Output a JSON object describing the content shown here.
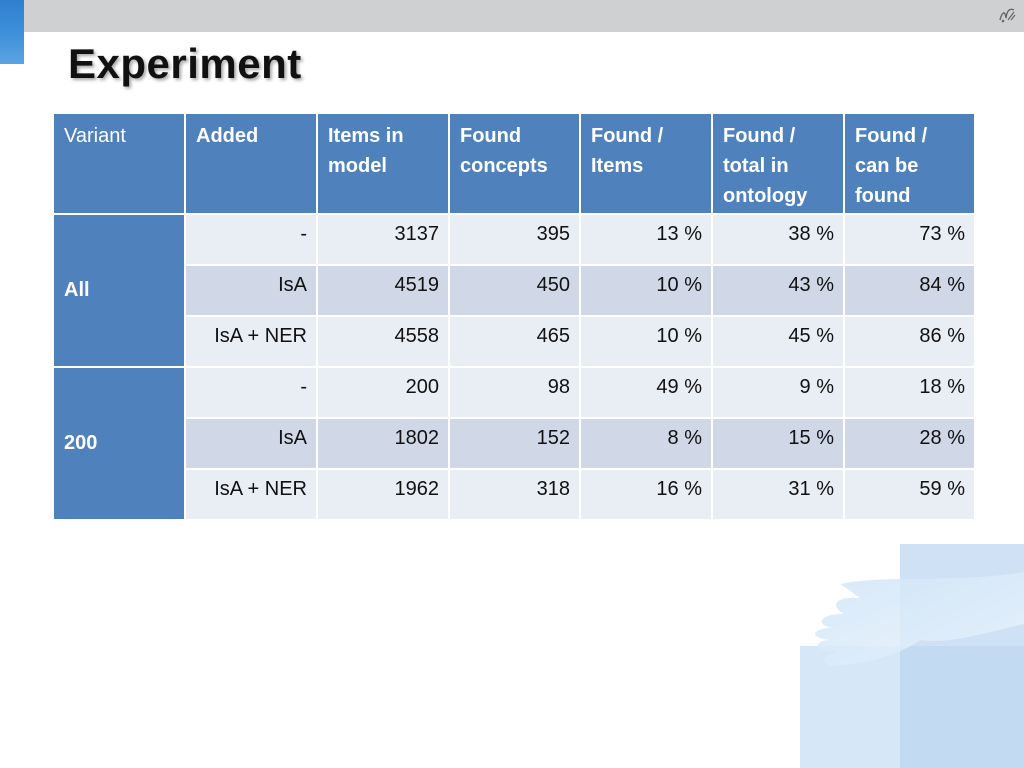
{
  "slide": {
    "title": "Experiment"
  },
  "table": {
    "headers": [
      "Variant",
      "Added",
      "Items in model",
      "Found concepts",
      "Found / Items",
      "Found / total in ontology",
      "Found / can be found"
    ],
    "groups": [
      {
        "variant": "All",
        "rows": [
          [
            "-",
            "3137",
            "395",
            "13 %",
            "38 %",
            "73 %"
          ],
          [
            "IsA",
            "4519",
            "450",
            "10 %",
            "43 %",
            "84 %"
          ],
          [
            "IsA + NER",
            "4558",
            "465",
            "10 %",
            "45 %",
            "86 %"
          ]
        ]
      },
      {
        "variant": "200",
        "rows": [
          [
            "-",
            "200",
            "98",
            "49 %",
            "9 %",
            "18 %"
          ],
          [
            "IsA",
            "1802",
            "152",
            "8 %",
            "15 %",
            "28 %"
          ],
          [
            "IsA + NER",
            "1962",
            "318",
            "16 %",
            "31 %",
            "59 %"
          ]
        ]
      }
    ]
  },
  "colors": {
    "header_bg": "#4f81bd",
    "row_light": "#e9edf4",
    "row_dark": "#d0d8e8",
    "top_bar": "#cfd0d2",
    "accent": "#3d8fd8"
  },
  "icons": [
    "publisher-logo-icon",
    "hand-graphic"
  ]
}
